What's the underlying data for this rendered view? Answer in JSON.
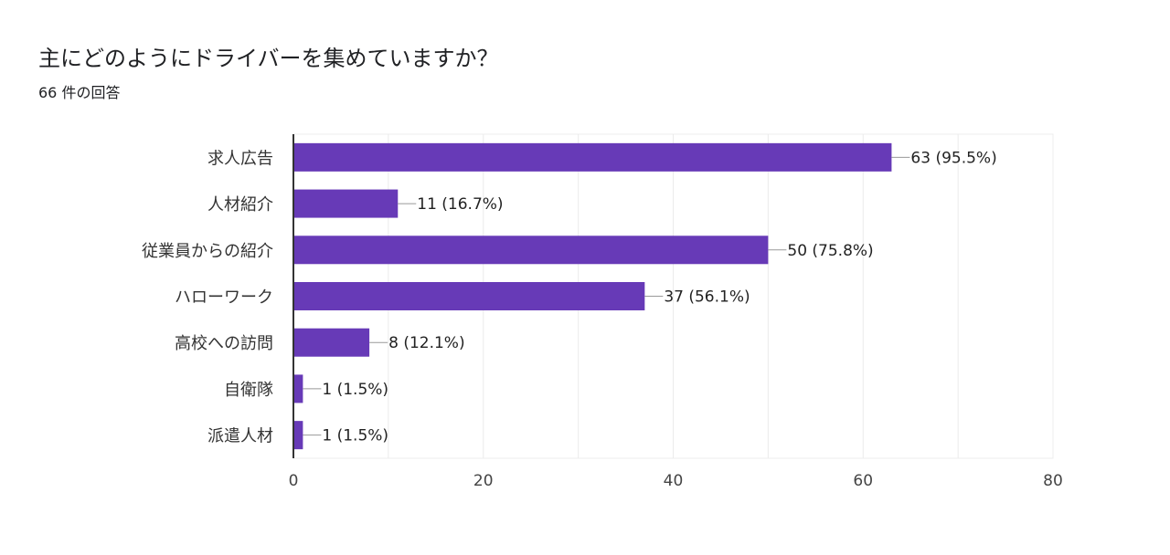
{
  "header": {
    "title": "主にどのようにドライバーを集めていますか？",
    "subtitle": "66 件の回答"
  },
  "chart_data": {
    "type": "bar",
    "orientation": "horizontal",
    "title": "主にどのようにドライバーを集めていますか？",
    "xlabel": "",
    "ylabel": "",
    "categories": [
      "求人広告",
      "人材紹介",
      "従業員からの紹介",
      "ハローワーク",
      "高校への訪問",
      "自衛隊",
      "派遣人材"
    ],
    "values": [
      63,
      11,
      50,
      37,
      8,
      1,
      1
    ],
    "data_labels": [
      "63 (95.5%)",
      "11 (16.7%)",
      "50 (75.8%)",
      "37 (56.1%)",
      "8 (12.1%)",
      "1 (1.5%)",
      "1 (1.5%)"
    ],
    "xlim": [
      0,
      80
    ],
    "x_ticks": [
      0,
      20,
      40,
      60,
      80
    ],
    "grid": true,
    "bar_color": "#673ab7"
  }
}
